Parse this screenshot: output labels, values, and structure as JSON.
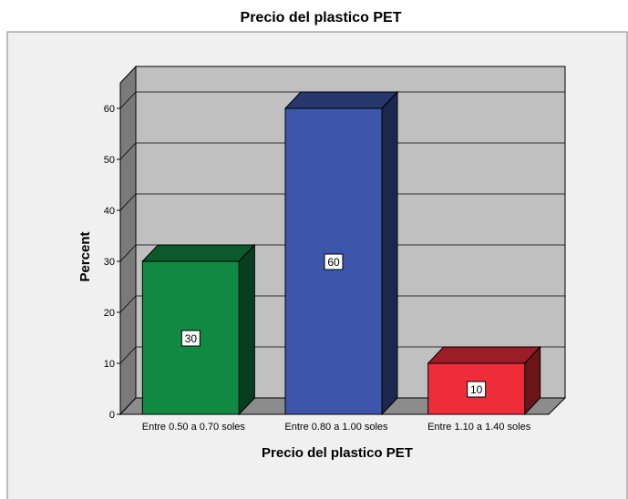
{
  "chart_data": {
    "type": "bar",
    "title": "Precio del plastico PET",
    "xlabel": "Precio del plastico PET",
    "ylabel": "Percent",
    "categories": [
      "Entre 0.50 a 0.70 soles",
      "Entre 0.80 a 1.00 soles",
      "Entre 1.10 a 1.40 soles"
    ],
    "values": [
      30,
      60,
      10
    ],
    "data_labels": [
      "30",
      "60",
      "10"
    ],
    "colors": [
      "#108a42",
      "#3d56ab",
      "#ef2d3a"
    ],
    "ylim": [
      0,
      65
    ],
    "yticks": [
      "0",
      "10",
      "20",
      "30",
      "40",
      "50",
      "60"
    ],
    "grid": true,
    "style": "3d"
  }
}
